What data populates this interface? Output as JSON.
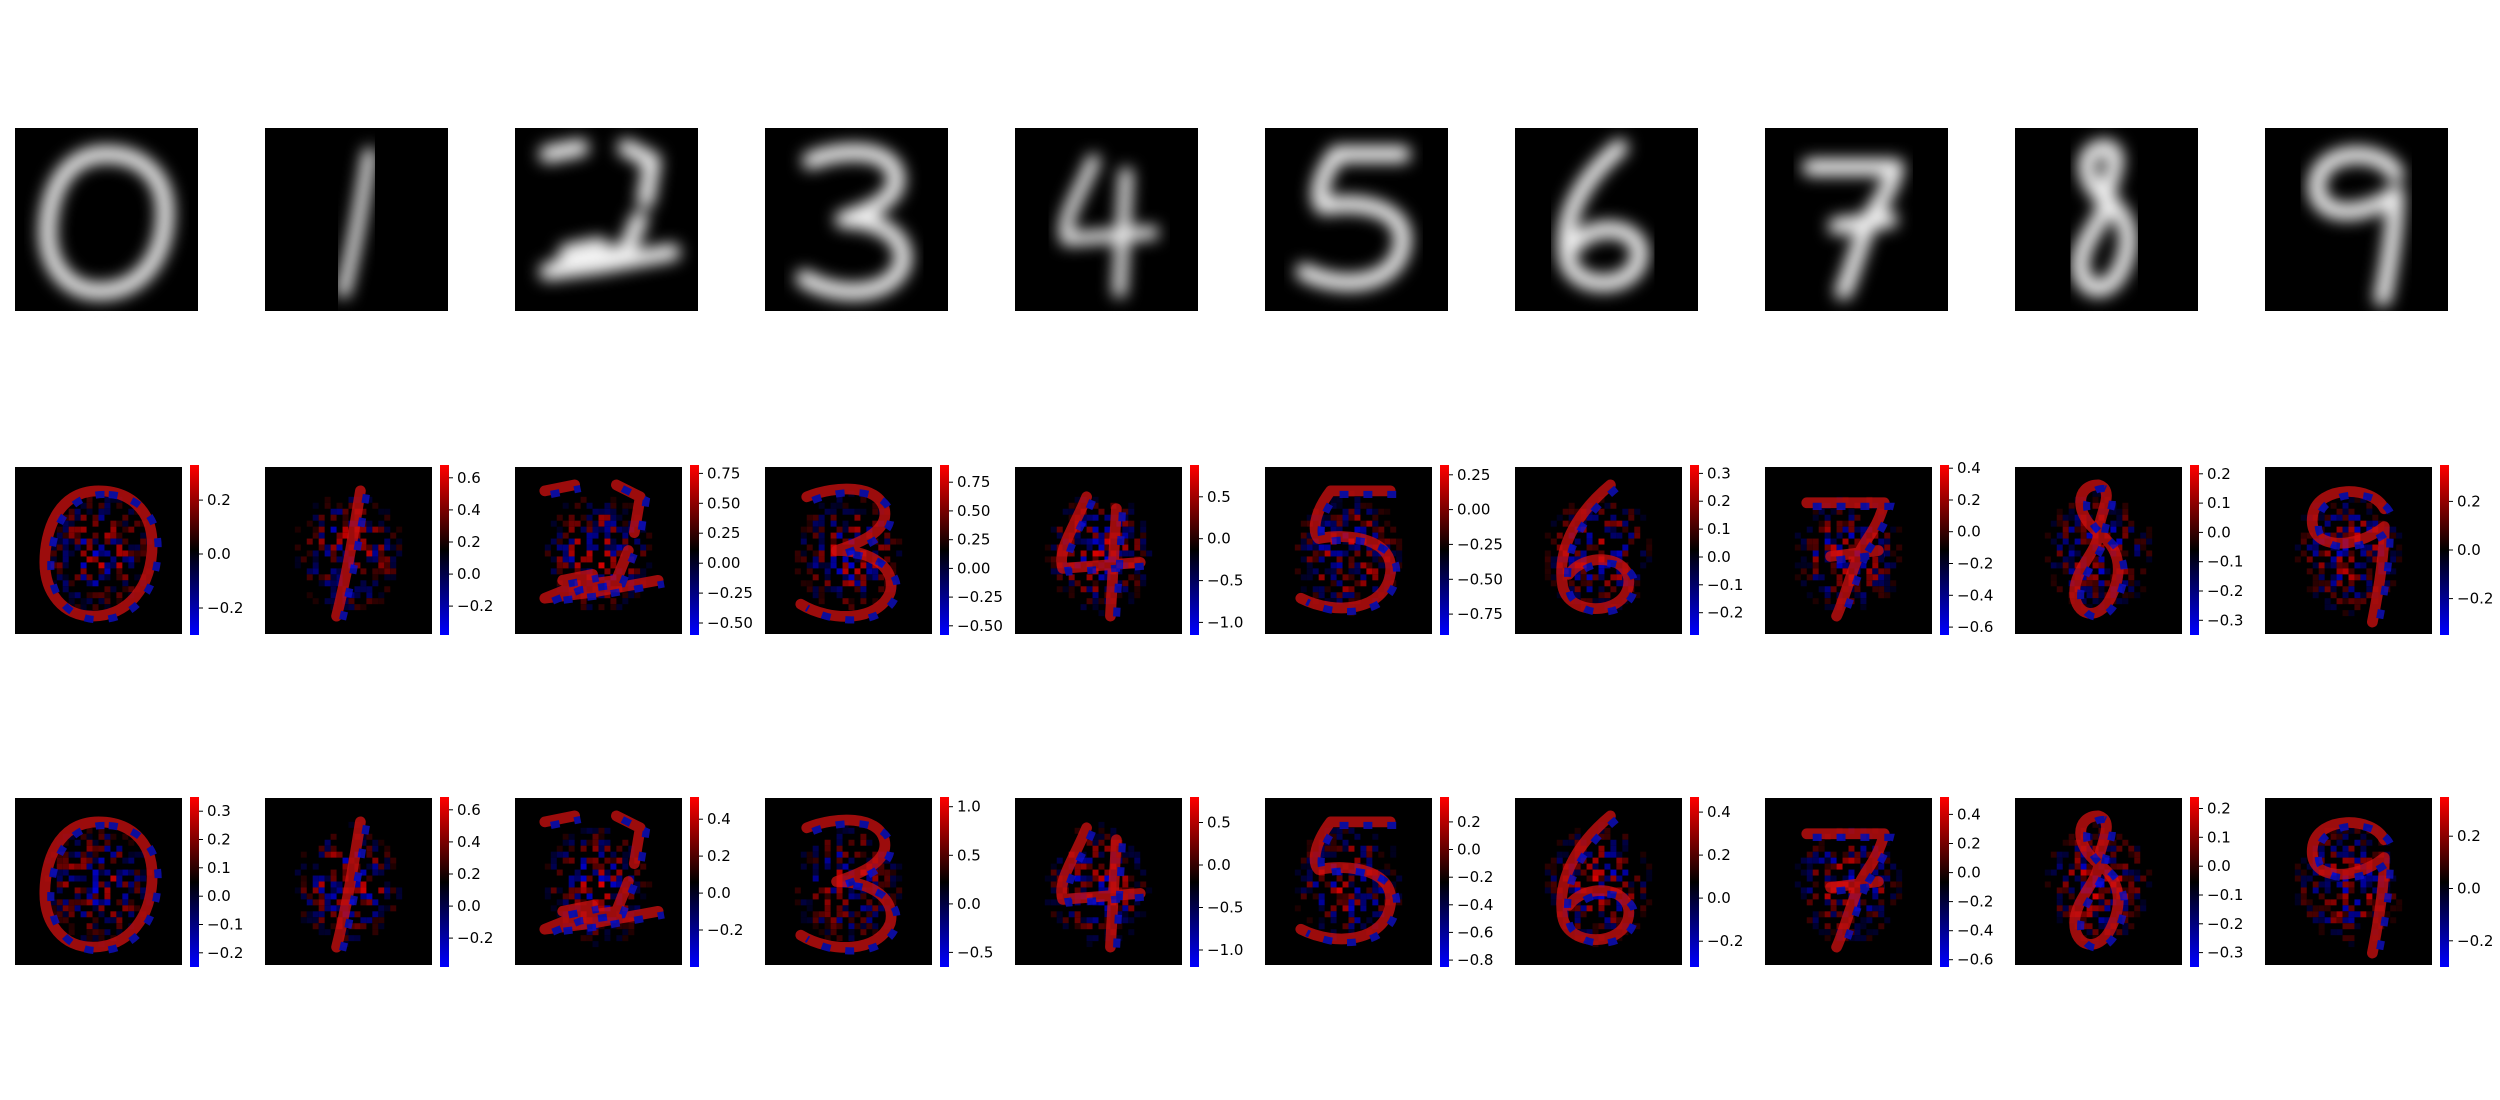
{
  "figure": {
    "layout": "3 rows x 10 columns",
    "row_descriptions": [
      "input digit images (grayscale)",
      "attribution heatmap (method A)",
      "attribution heatmap (method B)"
    ],
    "colormap": {
      "negative": "#0000ff",
      "zero": "#000000",
      "positive": "#ff0000"
    }
  },
  "chart_data": [
    {
      "type": "heatmap",
      "row": "images",
      "digits": [
        "0",
        "1",
        "2",
        "3",
        "4",
        "5",
        "6",
        "7",
        "8",
        "9"
      ],
      "cmap": "gray"
    },
    {
      "type": "heatmap",
      "row": "attribution-1",
      "colorbars": [
        {
          "digit": "0",
          "vmin": -0.3,
          "vmax": 0.33,
          "ticks": [
            0.2,
            0.0,
            -0.2
          ],
          "tick_labels": [
            "0.2",
            "0.0",
            "−0.2"
          ]
        },
        {
          "digit": "1",
          "vmin": -0.38,
          "vmax": 0.68,
          "ticks": [
            0.6,
            0.4,
            0.2,
            0.0,
            -0.2
          ],
          "tick_labels": [
            "0.6",
            "0.4",
            "0.2",
            "0.0",
            "−0.2"
          ]
        },
        {
          "digit": "2",
          "vmin": -0.6,
          "vmax": 0.82,
          "ticks": [
            0.75,
            0.5,
            0.25,
            0.0,
            -0.25,
            -0.5
          ],
          "tick_labels": [
            "0.75",
            "0.50",
            "0.25",
            "0.00",
            "−0.25",
            "−0.50"
          ]
        },
        {
          "digit": "3",
          "vmin": -0.58,
          "vmax": 0.9,
          "ticks": [
            0.75,
            0.5,
            0.25,
            0.0,
            -0.25,
            -0.5
          ],
          "tick_labels": [
            "0.75",
            "0.50",
            "0.25",
            "0.00",
            "−0.25",
            "−0.50"
          ]
        },
        {
          "digit": "4",
          "vmin": -1.15,
          "vmax": 0.88,
          "ticks": [
            0.5,
            0.0,
            -0.5,
            -1.0
          ],
          "tick_labels": [
            "0.5",
            "0.0",
            "−0.5",
            "−1.0"
          ]
        },
        {
          "digit": "5",
          "vmin": -0.9,
          "vmax": 0.32,
          "ticks": [
            0.25,
            0.0,
            -0.25,
            -0.5,
            -0.75
          ],
          "tick_labels": [
            "0.25",
            "0.00",
            "−0.25",
            "−0.50",
            "−0.75"
          ]
        },
        {
          "digit": "6",
          "vmin": -0.28,
          "vmax": 0.33,
          "ticks": [
            0.3,
            0.2,
            0.1,
            0.0,
            -0.1,
            -0.2
          ],
          "tick_labels": [
            "0.3",
            "0.2",
            "0.1",
            "0.0",
            "−0.1",
            "−0.2"
          ]
        },
        {
          "digit": "7",
          "vmin": -0.65,
          "vmax": 0.42,
          "ticks": [
            0.4,
            0.2,
            0.0,
            -0.2,
            -0.4,
            -0.6
          ],
          "tick_labels": [
            "0.4",
            "0.2",
            "0.0",
            "−0.2",
            "−0.4",
            "−0.6"
          ]
        },
        {
          "digit": "8",
          "vmin": -0.35,
          "vmax": 0.23,
          "ticks": [
            0.2,
            0.1,
            0.0,
            -0.1,
            -0.2,
            -0.3
          ],
          "tick_labels": [
            "0.2",
            "0.1",
            "0.0",
            "−0.1",
            "−0.2",
            "−0.3"
          ]
        },
        {
          "digit": "9",
          "vmin": -0.35,
          "vmax": 0.35,
          "ticks": [
            0.2,
            0.0,
            -0.2
          ],
          "tick_labels": [
            "0.2",
            "0.0",
            "−0.2"
          ]
        }
      ]
    },
    {
      "type": "heatmap",
      "row": "attribution-2",
      "colorbars": [
        {
          "digit": "0",
          "vmin": -0.25,
          "vmax": 0.35,
          "ticks": [
            0.3,
            0.2,
            0.1,
            0.0,
            -0.1,
            -0.2
          ],
          "tick_labels": [
            "0.3",
            "0.2",
            "0.1",
            "0.0",
            "−0.1",
            "−0.2"
          ]
        },
        {
          "digit": "1",
          "vmin": -0.38,
          "vmax": 0.68,
          "ticks": [
            0.6,
            0.4,
            0.2,
            0.0,
            -0.2
          ],
          "tick_labels": [
            "0.6",
            "0.4",
            "0.2",
            "0.0",
            "−0.2"
          ]
        },
        {
          "digit": "2",
          "vmin": -0.4,
          "vmax": 0.52,
          "ticks": [
            0.4,
            0.2,
            0.0,
            -0.2
          ],
          "tick_labels": [
            "0.4",
            "0.2",
            "0.0",
            "−0.2"
          ]
        },
        {
          "digit": "3",
          "vmin": -0.65,
          "vmax": 1.1,
          "ticks": [
            1.0,
            0.5,
            0.0,
            -0.5
          ],
          "tick_labels": [
            "1.0",
            "0.5",
            "0.0",
            "−0.5"
          ]
        },
        {
          "digit": "4",
          "vmin": -1.2,
          "vmax": 0.8,
          "ticks": [
            0.5,
            0.0,
            -0.5,
            -1.0
          ],
          "tick_labels": [
            "0.5",
            "0.0",
            "−0.5",
            "−1.0"
          ]
        },
        {
          "digit": "5",
          "vmin": -0.85,
          "vmax": 0.38,
          "ticks": [
            0.2,
            0.0,
            -0.2,
            -0.4,
            -0.6,
            -0.8
          ],
          "tick_labels": [
            "0.2",
            "0.0",
            "−0.2",
            "−0.4",
            "−0.6",
            "−0.8"
          ]
        },
        {
          "digit": "6",
          "vmin": -0.32,
          "vmax": 0.47,
          "ticks": [
            0.4,
            0.2,
            0.0,
            -0.2
          ],
          "tick_labels": [
            "0.4",
            "0.2",
            "0.0",
            "−0.2"
          ]
        },
        {
          "digit": "7",
          "vmin": -0.65,
          "vmax": 0.52,
          "ticks": [
            0.4,
            0.2,
            0.0,
            -0.2,
            -0.4,
            -0.6
          ],
          "tick_labels": [
            "0.4",
            "0.2",
            "0.0",
            "−0.2",
            "−0.4",
            "−0.6"
          ]
        },
        {
          "digit": "8",
          "vmin": -0.35,
          "vmax": 0.24,
          "ticks": [
            0.2,
            0.1,
            0.0,
            -0.1,
            -0.2,
            -0.3
          ],
          "tick_labels": [
            "0.2",
            "0.1",
            "0.0",
            "−0.1",
            "−0.2",
            "−0.3"
          ]
        },
        {
          "digit": "9",
          "vmin": -0.3,
          "vmax": 0.35,
          "ticks": [
            0.2,
            0.0,
            -0.2
          ],
          "tick_labels": [
            "0.2",
            "0.0",
            "−0.2"
          ]
        }
      ]
    }
  ]
}
